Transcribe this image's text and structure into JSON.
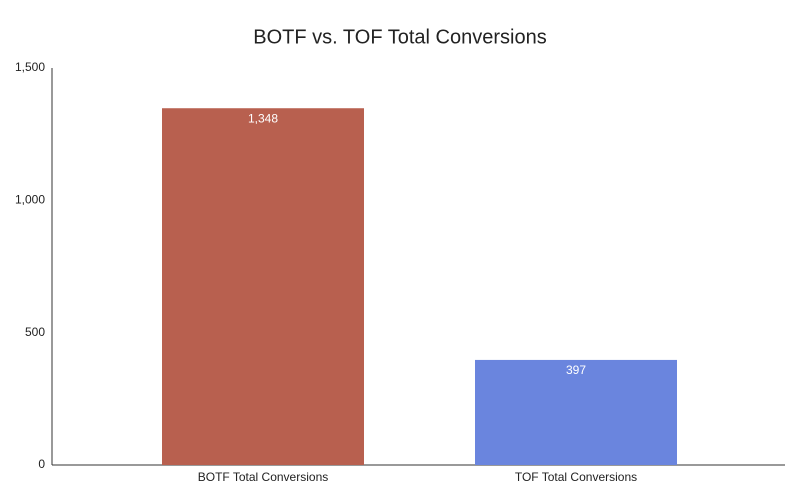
{
  "chart_data": {
    "type": "bar",
    "title": "BOTF vs. TOF Total Conversions",
    "categories": [
      "BOTF Total Conversions",
      "TOF Total Conversions"
    ],
    "values": [
      1348,
      397
    ],
    "value_labels": [
      "1,348",
      "397"
    ],
    "colors": [
      "#b8604f",
      "#6a85de"
    ],
    "ylim": [
      0,
      1500
    ],
    "yticks": [
      0,
      500,
      {
        "value": 1000,
        "label": "1,000"
      },
      {
        "value": 1500,
        "label": "1,500"
      }
    ],
    "grid": false
  }
}
